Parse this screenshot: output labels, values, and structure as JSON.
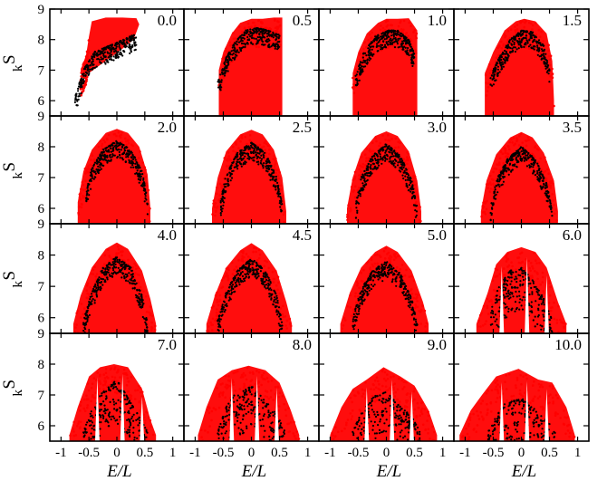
{
  "chart_data": {
    "type": "scatter",
    "layout": "4x4 small multiples, shared axes",
    "ylabel": "S",
    "ylabel_subscript": "k",
    "xlabel": "E/L",
    "xlim": [
      -1.2,
      1.2
    ],
    "ylim": [
      5.5,
      9.0
    ],
    "x_ticks": [
      -1,
      -0.5,
      0,
      0.5,
      1
    ],
    "x_tick_labels": [
      "-1",
      "-0.5",
      "0",
      "0.5",
      "1"
    ],
    "y_ticks": [
      6,
      7,
      8,
      9
    ],
    "y_tick_labels": [
      "6",
      "7",
      "8",
      "9"
    ],
    "grid": false,
    "series_colors": {
      "upper": "#ff0000",
      "lower": "#000000"
    },
    "panels": [
      {
        "label": "0.0",
        "shape": "fan",
        "upper": [
          [
            -0.65,
            7.0
          ],
          [
            -0.55,
            7.5
          ],
          [
            -0.5,
            8.1
          ],
          [
            -0.45,
            8.6
          ],
          [
            -0.2,
            8.72
          ],
          [
            0.1,
            8.72
          ],
          [
            0.35,
            8.7
          ],
          [
            0.4,
            8.5
          ],
          [
            0.3,
            8.0
          ],
          [
            0.1,
            7.7
          ],
          [
            -0.2,
            7.3
          ],
          [
            -0.5,
            6.9
          ]
        ],
        "lower": [
          [
            -0.75,
            6.1
          ],
          [
            -0.6,
            7.0
          ],
          [
            -0.4,
            7.6
          ],
          [
            0,
            7.9
          ],
          [
            0.35,
            8.2
          ]
        ]
      },
      {
        "label": "0.5",
        "shape": "dome",
        "upper": [
          [
            -0.58,
            7.0
          ],
          [
            -0.5,
            7.6
          ],
          [
            -0.35,
            8.2
          ],
          [
            -0.2,
            8.55
          ],
          [
            0,
            8.68
          ],
          [
            0.2,
            8.68
          ],
          [
            0.4,
            8.72
          ],
          [
            0.55,
            8.72
          ]
        ],
        "lower": [
          [
            -0.6,
            6.6
          ],
          [
            -0.45,
            7.4
          ],
          [
            -0.3,
            7.9
          ],
          [
            -0.1,
            8.3
          ],
          [
            0.1,
            8.38
          ],
          [
            0.3,
            8.3
          ],
          [
            0.5,
            8.15
          ]
        ]
      },
      {
        "label": "1.0",
        "shape": "dome",
        "upper": [
          [
            -0.6,
            6.9
          ],
          [
            -0.5,
            7.6
          ],
          [
            -0.35,
            8.2
          ],
          [
            -0.15,
            8.55
          ],
          [
            0,
            8.68
          ],
          [
            0.2,
            8.68
          ],
          [
            0.4,
            8.7
          ],
          [
            0.55,
            8.3
          ],
          [
            0.55,
            6.8
          ]
        ],
        "lower": [
          [
            -0.55,
            6.8
          ],
          [
            -0.4,
            7.6
          ],
          [
            -0.2,
            8.1
          ],
          [
            0,
            8.3
          ],
          [
            0.2,
            8.3
          ],
          [
            0.4,
            8.0
          ],
          [
            0.5,
            7.5
          ]
        ]
      },
      {
        "label": "1.5",
        "shape": "dome",
        "upper": [
          [
            -0.65,
            6.9
          ],
          [
            -0.5,
            7.6
          ],
          [
            -0.3,
            8.3
          ],
          [
            -0.1,
            8.6
          ],
          [
            0.05,
            8.68
          ],
          [
            0.25,
            8.6
          ],
          [
            0.45,
            8.2
          ],
          [
            0.55,
            7.3
          ],
          [
            0.58,
            6.0
          ]
        ],
        "lower": [
          [
            -0.55,
            6.8
          ],
          [
            -0.4,
            7.4
          ],
          [
            -0.2,
            8.0
          ],
          [
            0,
            8.3
          ],
          [
            0.2,
            8.25
          ],
          [
            0.4,
            7.8
          ],
          [
            0.5,
            7.0
          ]
        ]
      },
      {
        "label": "2.0",
        "shape": "dome",
        "upper": [
          [
            -0.7,
            6.2
          ],
          [
            -0.6,
            7.2
          ],
          [
            -0.45,
            7.9
          ],
          [
            -0.2,
            8.45
          ],
          [
            0,
            8.58
          ],
          [
            0.2,
            8.45
          ],
          [
            0.4,
            8.0
          ],
          [
            0.55,
            7.1
          ],
          [
            0.6,
            6.0
          ]
        ],
        "lower": [
          [
            -0.55,
            6.5
          ],
          [
            -0.45,
            7.3
          ],
          [
            -0.25,
            7.9
          ],
          [
            0,
            8.2
          ],
          [
            0.25,
            7.9
          ],
          [
            0.45,
            7.2
          ],
          [
            0.55,
            6.3
          ]
        ]
      },
      {
        "label": "2.5",
        "shape": "dome",
        "upper": [
          [
            -0.7,
            6.0
          ],
          [
            -0.6,
            7.0
          ],
          [
            -0.45,
            7.85
          ],
          [
            -0.2,
            8.4
          ],
          [
            0,
            8.55
          ],
          [
            0.2,
            8.4
          ],
          [
            0.4,
            7.9
          ],
          [
            0.55,
            7.0
          ],
          [
            0.62,
            5.9
          ]
        ],
        "lower": [
          [
            -0.55,
            6.2
          ],
          [
            -0.45,
            7.1
          ],
          [
            -0.25,
            7.8
          ],
          [
            0,
            8.15
          ],
          [
            0.25,
            7.8
          ],
          [
            0.45,
            7.0
          ],
          [
            0.55,
            6.1
          ]
        ]
      },
      {
        "label": "3.0",
        "shape": "dome",
        "upper": [
          [
            -0.7,
            6.0
          ],
          [
            -0.6,
            7.0
          ],
          [
            -0.45,
            7.8
          ],
          [
            -0.2,
            8.35
          ],
          [
            0,
            8.5
          ],
          [
            0.2,
            8.35
          ],
          [
            0.4,
            7.85
          ],
          [
            0.55,
            6.9
          ],
          [
            0.62,
            5.9
          ]
        ],
        "lower": [
          [
            -0.55,
            6.1
          ],
          [
            -0.45,
            7.0
          ],
          [
            -0.25,
            7.7
          ],
          [
            0,
            8.1
          ],
          [
            0.25,
            7.7
          ],
          [
            0.45,
            6.9
          ],
          [
            0.55,
            6.0
          ]
        ]
      },
      {
        "label": "3.5",
        "shape": "dome",
        "upper": [
          [
            -0.72,
            5.9
          ],
          [
            -0.62,
            6.9
          ],
          [
            -0.45,
            7.75
          ],
          [
            -0.2,
            8.3
          ],
          [
            0,
            8.48
          ],
          [
            0.2,
            8.3
          ],
          [
            0.4,
            7.8
          ],
          [
            0.58,
            6.9
          ],
          [
            0.65,
            5.9
          ]
        ],
        "lower": [
          [
            -0.55,
            6.0
          ],
          [
            -0.45,
            6.9
          ],
          [
            -0.25,
            7.6
          ],
          [
            0,
            8.0
          ],
          [
            0.25,
            7.6
          ],
          [
            0.45,
            6.8
          ],
          [
            0.55,
            5.9
          ]
        ]
      },
      {
        "label": "4.0",
        "shape": "dome",
        "upper": [
          [
            -0.78,
            5.8
          ],
          [
            -0.65,
            6.7
          ],
          [
            -0.45,
            7.6
          ],
          [
            -0.2,
            8.2
          ],
          [
            0,
            8.4
          ],
          [
            0.2,
            8.2
          ],
          [
            0.45,
            7.5
          ],
          [
            0.6,
            6.6
          ],
          [
            0.7,
            5.8
          ]
        ],
        "lower": [
          [
            -0.6,
            5.9
          ],
          [
            -0.45,
            6.8
          ],
          [
            -0.25,
            7.6
          ],
          [
            0,
            7.95
          ],
          [
            0.25,
            7.6
          ],
          [
            0.45,
            6.7
          ],
          [
            0.55,
            5.8
          ]
        ]
      },
      {
        "label": "4.5",
        "shape": "dome",
        "upper": [
          [
            -0.8,
            5.8
          ],
          [
            -0.65,
            6.7
          ],
          [
            -0.45,
            7.6
          ],
          [
            -0.2,
            8.15
          ],
          [
            0,
            8.38
          ],
          [
            0.2,
            8.15
          ],
          [
            0.45,
            7.5
          ],
          [
            0.62,
            6.5
          ],
          [
            0.72,
            5.8
          ]
        ],
        "lower": [
          [
            -0.6,
            5.9
          ],
          [
            -0.45,
            6.8
          ],
          [
            -0.25,
            7.5
          ],
          [
            0,
            7.9
          ],
          [
            0.25,
            7.5
          ],
          [
            0.45,
            6.7
          ],
          [
            0.55,
            5.8
          ]
        ]
      },
      {
        "label": "5.0",
        "shape": "dome",
        "upper": [
          [
            -0.82,
            5.8
          ],
          [
            -0.65,
            6.8
          ],
          [
            -0.45,
            7.6
          ],
          [
            -0.2,
            8.1
          ],
          [
            0,
            8.3
          ],
          [
            0.2,
            8.1
          ],
          [
            0.45,
            7.5
          ],
          [
            0.65,
            6.5
          ],
          [
            0.75,
            5.8
          ]
        ],
        "lower": [
          [
            -0.6,
            6.0
          ],
          [
            -0.45,
            6.9
          ],
          [
            -0.25,
            7.5
          ],
          [
            0,
            7.8
          ],
          [
            0.25,
            7.4
          ],
          [
            0.45,
            6.6
          ],
          [
            0.55,
            5.8
          ]
        ]
      },
      {
        "label": "6.0",
        "shape": "lobes",
        "upper": [
          [
            -0.8,
            5.8
          ],
          [
            -0.6,
            6.8
          ],
          [
            -0.45,
            7.7
          ],
          [
            -0.25,
            8.1
          ],
          [
            0,
            8.25
          ],
          [
            0.25,
            8.1
          ],
          [
            0.45,
            7.6
          ],
          [
            0.65,
            6.5
          ],
          [
            0.8,
            5.8
          ]
        ],
        "lower": [
          [
            -0.55,
            6.2
          ],
          [
            -0.4,
            7.0
          ],
          [
            -0.2,
            7.5
          ],
          [
            0,
            7.6
          ],
          [
            0.2,
            7.2
          ],
          [
            0.4,
            6.6
          ],
          [
            0.55,
            5.9
          ]
        ]
      },
      {
        "label": "7.0",
        "shape": "lobes",
        "upper": [
          [
            -0.85,
            5.7
          ],
          [
            -0.7,
            6.6
          ],
          [
            -0.5,
            7.6
          ],
          [
            -0.3,
            7.9
          ],
          [
            -0.05,
            8.0
          ],
          [
            0.2,
            7.9
          ],
          [
            0.45,
            7.2
          ],
          [
            0.6,
            6.2
          ],
          [
            0.7,
            5.7
          ]
        ],
        "lower": [
          [
            -0.6,
            5.8
          ],
          [
            -0.45,
            6.5
          ],
          [
            -0.3,
            7.0
          ],
          [
            0,
            7.5
          ],
          [
            0.2,
            6.9
          ],
          [
            0.4,
            6.3
          ],
          [
            0.55,
            5.8
          ]
        ]
      },
      {
        "label": "8.0",
        "shape": "lobes",
        "upper": [
          [
            -0.95,
            5.7
          ],
          [
            -0.8,
            6.6
          ],
          [
            -0.6,
            7.5
          ],
          [
            -0.35,
            7.8
          ],
          [
            -0.05,
            7.95
          ],
          [
            0.25,
            7.8
          ],
          [
            0.5,
            7.4
          ],
          [
            0.7,
            6.5
          ],
          [
            0.85,
            5.7
          ]
        ],
        "lower": [
          [
            -0.6,
            5.8
          ],
          [
            -0.45,
            6.6
          ],
          [
            -0.3,
            7.0
          ],
          [
            0,
            7.3
          ],
          [
            0.2,
            6.9
          ],
          [
            0.45,
            6.4
          ],
          [
            0.6,
            5.8
          ]
        ]
      },
      {
        "label": "9.0",
        "shape": "lobes",
        "upper": [
          [
            -1.0,
            5.7
          ],
          [
            -0.8,
            6.6
          ],
          [
            -0.6,
            7.2
          ],
          [
            -0.35,
            7.5
          ],
          [
            -0.05,
            7.9
          ],
          [
            0.25,
            7.6
          ],
          [
            0.5,
            7.3
          ],
          [
            0.75,
            6.5
          ],
          [
            0.9,
            5.7
          ]
        ],
        "lower": [
          [
            -0.6,
            5.8
          ],
          [
            -0.45,
            6.4
          ],
          [
            -0.3,
            6.9
          ],
          [
            0,
            7.1
          ],
          [
            0.2,
            6.7
          ],
          [
            0.45,
            6.3
          ],
          [
            0.6,
            5.8
          ]
        ]
      },
      {
        "label": "10.0",
        "shape": "lobes",
        "upper": [
          [
            -1.1,
            5.7
          ],
          [
            -0.9,
            6.5
          ],
          [
            -0.7,
            7.0
          ],
          [
            -0.45,
            7.6
          ],
          [
            -0.05,
            7.85
          ],
          [
            0.3,
            7.5
          ],
          [
            0.55,
            7.4
          ],
          [
            0.8,
            6.6
          ],
          [
            0.95,
            5.7
          ]
        ],
        "lower": [
          [
            -0.6,
            5.8
          ],
          [
            -0.45,
            6.3
          ],
          [
            -0.3,
            6.7
          ],
          [
            0,
            6.9
          ],
          [
            0.2,
            6.6
          ],
          [
            0.45,
            6.2
          ],
          [
            0.6,
            5.8
          ]
        ]
      }
    ]
  }
}
